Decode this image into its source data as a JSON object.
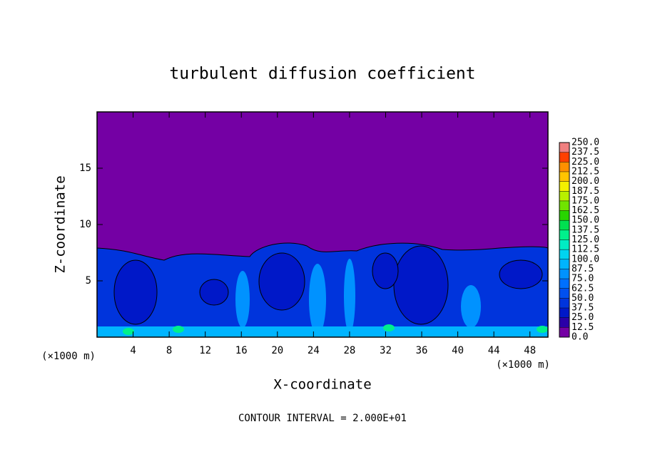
{
  "chart_data": {
    "type": "contour",
    "title": "turbulent diffusion coefficient",
    "xlabel": "X-coordinate",
    "ylabel": "Z-coordinate",
    "x_unit_label": "(×1000 m)",
    "y_unit_label": "(×1000 m)",
    "footer": "CONTOUR INTERVAL = 2.000E+01",
    "xlim": [
      0,
      50
    ],
    "ylim": [
      0,
      20
    ],
    "xticks": [
      4,
      8,
      12,
      16,
      20,
      24,
      28,
      32,
      36,
      40,
      44,
      48
    ],
    "yticks": [
      5,
      10,
      15
    ],
    "colorbar": {
      "levels": [
        {
          "value": 0,
          "label": "0.0"
        },
        {
          "value": 12.5,
          "label": "12.5"
        },
        {
          "value": 25,
          "label": "25.0"
        },
        {
          "value": 37.5,
          "label": "37.5"
        },
        {
          "value": 50,
          "label": "50.0"
        },
        {
          "value": 62.5,
          "label": "62.5"
        },
        {
          "value": 75,
          "label": "75.0"
        },
        {
          "value": 87.5,
          "label": "87.5"
        },
        {
          "value": 100,
          "label": "100.0"
        },
        {
          "value": 112.5,
          "label": "112.5"
        },
        {
          "value": 125,
          "label": "125.0"
        },
        {
          "value": 137.5,
          "label": "137.5"
        },
        {
          "value": 150,
          "label": "150.0"
        },
        {
          "value": 162.5,
          "label": "162.5"
        },
        {
          "value": 175,
          "label": "175.0"
        },
        {
          "value": 187.5,
          "label": "187.5"
        },
        {
          "value": 200,
          "label": "200.0"
        },
        {
          "value": 212.5,
          "label": "212.5"
        },
        {
          "value": 225,
          "label": "225.0"
        },
        {
          "value": 237.5,
          "label": "237.5"
        },
        {
          "value": 250,
          "label": "250.0"
        }
      ],
      "colors": [
        "#7400a4",
        "#2a00a8",
        "#0018c8",
        "#0034dc",
        "#0050f0",
        "#0070ff",
        "#0092ff",
        "#00b4ff",
        "#00d4f0",
        "#00ecc4",
        "#00f08c",
        "#00e050",
        "#28d400",
        "#70e400",
        "#b8f000",
        "#f4f000",
        "#ffc400",
        "#ff9000",
        "#ff4000",
        "#f08080"
      ]
    }
  }
}
